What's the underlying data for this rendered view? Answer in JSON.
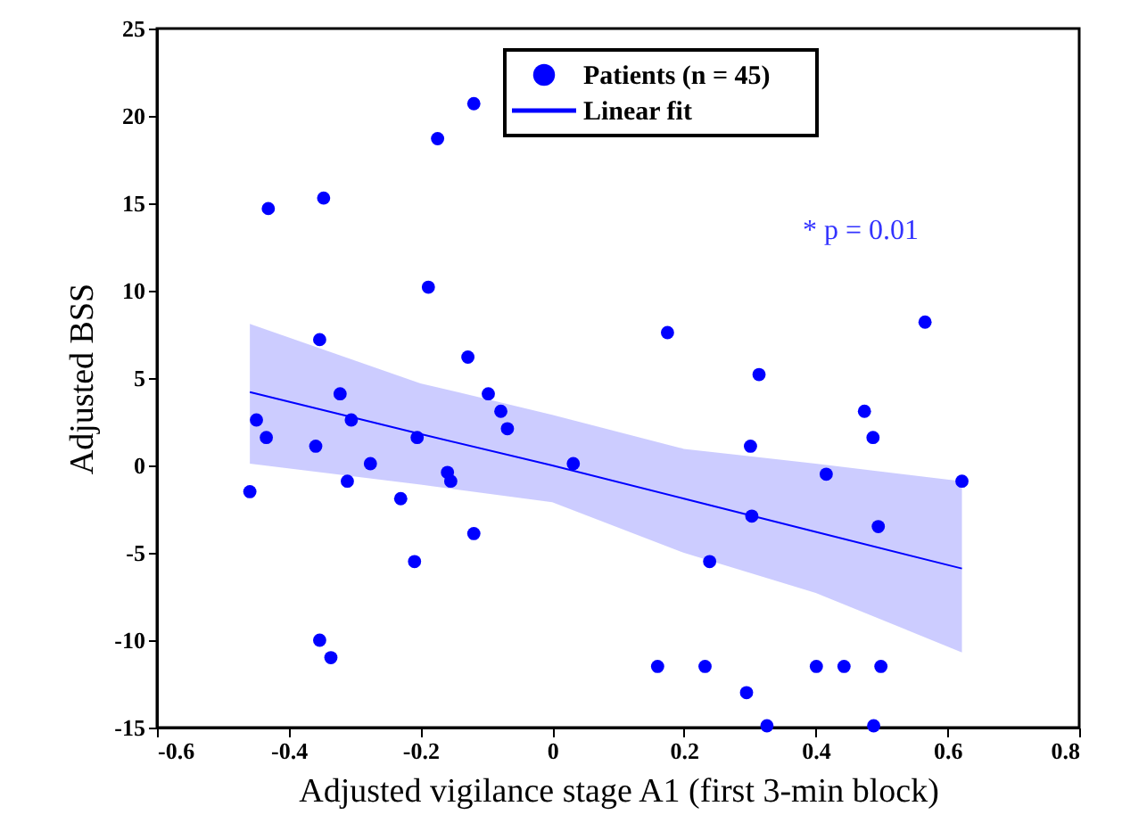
{
  "chart_data": {
    "type": "scatter",
    "xlabel": "Adjusted vigilance stage A1 (first 3-min block)",
    "ylabel": "Adjusted BSS",
    "xlim": [
      -0.6,
      0.8
    ],
    "xticks": [
      -0.6,
      -0.4,
      -0.2,
      0,
      0.2,
      0.4,
      0.6,
      0.8
    ],
    "ylim": [
      -15,
      25
    ],
    "yticks": [
      -15,
      -10,
      -5,
      0,
      5,
      10,
      15,
      20,
      25
    ],
    "grid": false,
    "legend": "top right",
    "annotations": [
      "* p = 0.01"
    ],
    "series": [
      {
        "name": "Patients (n = 45)",
        "marker": "circle",
        "color": "#0000ff",
        "x": [
          -0.119,
          -0.174,
          -0.431,
          -0.347,
          -0.188,
          -0.353,
          -0.128,
          0.175,
          0.314,
          0.566,
          -0.322,
          -0.449,
          -0.434,
          -0.305,
          -0.359,
          -0.205,
          -0.276,
          -0.311,
          -0.459,
          -0.23,
          -0.159,
          -0.154,
          -0.119,
          -0.209,
          -0.097,
          -0.078,
          -0.068,
          0.032,
          -0.353,
          -0.336,
          0.474,
          0.487,
          0.301,
          0.416,
          0.622,
          0.303,
          0.495,
          0.239,
          0.16,
          0.232,
          0.401,
          0.443,
          0.499,
          0.295,
          0.326,
          0.488
        ],
        "values": [
          20.7,
          18.7,
          14.7,
          15.3,
          10.2,
          7.2,
          6.2,
          7.6,
          5.2,
          8.2,
          4.1,
          2.6,
          1.6,
          2.6,
          1.1,
          1.6,
          0.1,
          -0.9,
          -1.5,
          -1.9,
          -0.4,
          -0.9,
          -3.9,
          -5.5,
          4.1,
          3.1,
          2.1,
          0.1,
          -10.0,
          -11.0,
          3.1,
          1.6,
          1.1,
          -0.5,
          -0.9,
          -2.9,
          -3.5,
          -5.5,
          -11.5,
          -11.5,
          -11.5,
          -11.5,
          -11.5,
          -13.0,
          -14.9,
          -14.9
        ]
      },
      {
        "name": "Linear fit",
        "type": "line",
        "marker": "none",
        "line_style": "solid",
        "color": "#0000ff",
        "x": [
          -0.459,
          -0.2,
          0,
          0.2,
          0.4,
          0.622
        ],
        "values": [
          4.2,
          1.8,
          0.0,
          -1.9,
          -3.8,
          -5.9
        ],
        "lower": [
          0.1,
          -1.1,
          -2.1,
          -5.0,
          -7.3,
          -10.7
        ],
        "upper": [
          8.1,
          4.7,
          2.9,
          0.95,
          0.1,
          -0.9
        ]
      }
    ]
  }
}
